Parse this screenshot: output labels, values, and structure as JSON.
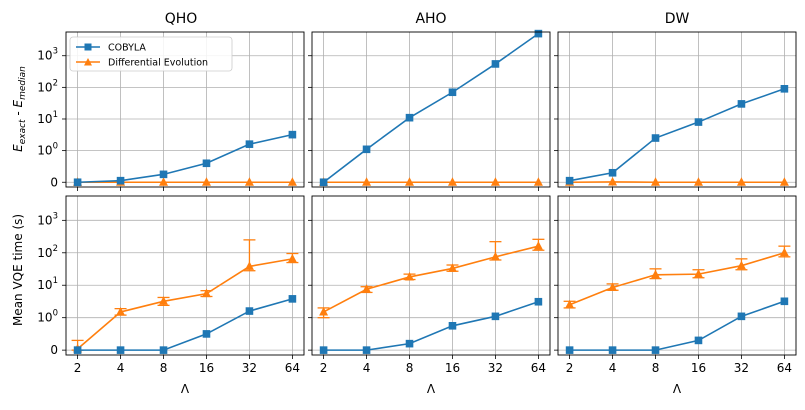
{
  "chart_data": {
    "type": "line",
    "panel_titles": [
      "QHO",
      "AHO",
      "DW"
    ],
    "x": [
      2,
      4,
      8,
      16,
      32,
      64
    ],
    "x_tick_labels": [
      "2",
      "4",
      "8",
      "16",
      "32",
      "64"
    ],
    "x_scale": "log2",
    "y_scale": "symlog",
    "y_tick_labels": [
      "0",
      "10^0",
      "10^1",
      "10^2",
      "10^3"
    ],
    "xlabel": "Λ",
    "ylabel_top": "E_exact - E_median",
    "ylabel_bottom": "Mean VQE time (s)",
    "grid": true,
    "legend": {
      "position": "top-left of first panel",
      "entries": [
        {
          "name": "COBYLA",
          "color": "#1f77b4",
          "marker": "square"
        },
        {
          "name": "Differential Evolution",
          "color": "#ff7f0e",
          "marker": "triangle"
        }
      ]
    },
    "rows": [
      {
        "metric": "energy error",
        "panels": [
          {
            "title": "QHO",
            "cobyla": [
              0,
              0.05,
              0.25,
              0.6,
              1.6,
              3.2
            ],
            "de": [
              0,
              0,
              0,
              0,
              0,
              0
            ]
          },
          {
            "title": "AHO",
            "cobyla": [
              0,
              1.1,
              11,
              70,
              550,
              5000
            ],
            "de": [
              0,
              0,
              0,
              0,
              0,
              0
            ]
          },
          {
            "title": "DW",
            "cobyla": [
              0.05,
              0.3,
              2.5,
              8,
              30,
              90
            ],
            "de": [
              0,
              0.01,
              0,
              0,
              0,
              0
            ]
          }
        ]
      },
      {
        "metric": "mean VQE time",
        "panels": [
          {
            "title": "QHO",
            "cobyla": [
              0,
              0,
              0,
              0.5,
              1.6,
              3.8
            ],
            "de": [
              0.04,
              1.5,
              3.2,
              5.5,
              38,
              65
            ],
            "de_err_low": [
              0,
              1.2,
              2.4,
              4.5,
              28,
              50
            ],
            "de_err_high": [
              0.3,
              1.9,
              4.2,
              6.8,
              250,
              95
            ]
          },
          {
            "title": "AHO",
            "cobyla": [
              0,
              0,
              0.2,
              0.75,
              1.1,
              3.1
            ],
            "de": [
              1.5,
              7.5,
              18,
              33,
              75,
              160
            ],
            "de_err_low": [
              1.0,
              6.0,
              15,
              27,
              60,
              120
            ],
            "de_err_high": [
              2.0,
              9.0,
              22,
              42,
              220,
              260
            ]
          },
          {
            "title": "DW",
            "cobyla": [
              0,
              0,
              0,
              0.3,
              1.1,
              3.2
            ],
            "de": [
              2.5,
              8.5,
              21,
              22,
              40,
              100
            ],
            "de_err_low": [
              2.0,
              7.0,
              16,
              17,
              30,
              75
            ],
            "de_err_high": [
              3.2,
              11,
              32,
              30,
              65,
              160
            ]
          }
        ]
      }
    ]
  }
}
